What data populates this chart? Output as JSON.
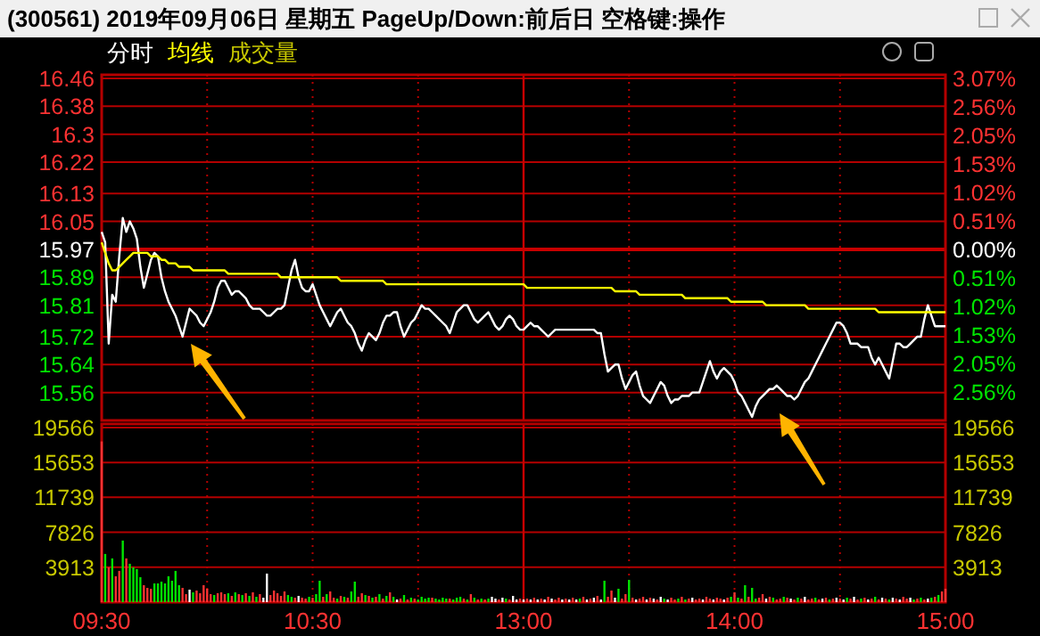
{
  "chart_data": [
    {
      "type": "line",
      "title": "(300561)  2019年09月06日 星期五 PageUp/Down:前后日 空格键:操作",
      "categories": [
        "09:30",
        null,
        null,
        null,
        null,
        null,
        null,
        null,
        null,
        null,
        null,
        null,
        null,
        null,
        null,
        null,
        null,
        null,
        null,
        null,
        null,
        null,
        null,
        null,
        null,
        null,
        null,
        null,
        null,
        null,
        null,
        null,
        null,
        null,
        null,
        null,
        null,
        null,
        null,
        null,
        null,
        null,
        null,
        null,
        null,
        null,
        null,
        null,
        null,
        null,
        null,
        null,
        null,
        null,
        null,
        null,
        null,
        null,
        null,
        null,
        "10:30",
        null,
        null,
        null,
        null,
        null,
        null,
        null,
        null,
        null,
        null,
        null,
        null,
        null,
        null,
        null,
        null,
        null,
        null,
        null,
        null,
        null,
        null,
        null,
        null,
        null,
        null,
        null,
        null,
        null,
        null,
        null,
        null,
        null,
        null,
        null,
        null,
        null,
        null,
        null,
        null,
        null,
        null,
        null,
        null,
        null,
        null,
        null,
        null,
        null,
        null,
        null,
        null,
        null,
        null,
        null,
        null,
        null,
        null,
        null,
        "13:00",
        null,
        null,
        null,
        null,
        null,
        null,
        null,
        null,
        null,
        null,
        null,
        null,
        null,
        null,
        null,
        null,
        null,
        null,
        null,
        null,
        null,
        null,
        null,
        null,
        null,
        null,
        null,
        null,
        null,
        null,
        null,
        null,
        null,
        null,
        null,
        null,
        null,
        null,
        null,
        null,
        null,
        null,
        null,
        null,
        null,
        null,
        null,
        null,
        null,
        null,
        null,
        null,
        null,
        null,
        null,
        null,
        null,
        null,
        null,
        "14:00",
        null,
        null,
        null,
        null,
        null,
        null,
        null,
        null,
        null,
        null,
        null,
        null,
        null,
        null,
        null,
        null,
        null,
        null,
        null,
        null,
        null,
        null,
        null,
        null,
        null,
        null,
        null,
        null,
        null,
        null,
        null,
        null,
        null,
        null,
        null,
        null,
        null,
        null,
        null,
        null,
        null,
        null,
        null,
        null,
        null,
        null,
        null,
        null,
        null,
        null,
        null,
        null,
        null,
        null,
        null,
        null,
        null,
        null,
        null,
        "15:00"
      ],
      "ylim": [
        15.48,
        16.47
      ],
      "yticks": [
        15.56,
        15.64,
        15.72,
        15.81,
        15.89,
        15.97,
        16.05,
        16.13,
        16.22,
        16.3,
        16.38,
        16.46
      ],
      "y2lim": [
        -3.07,
        3.13
      ],
      "y2ticks": [
        {
          "value": -2.56,
          "label": "2.56%"
        },
        {
          "value": -2.05,
          "label": "2.05%"
        },
        {
          "value": -1.53,
          "label": "1.53%"
        },
        {
          "value": -1.02,
          "label": "1.02%"
        },
        {
          "value": -0.51,
          "label": "0.51%"
        },
        {
          "value": 0,
          "label": "0.00%"
        },
        {
          "value": 0.51,
          "label": "0.51%"
        },
        {
          "value": 1.02,
          "label": "1.02%"
        },
        {
          "value": 1.53,
          "label": "1.53%"
        },
        {
          "value": 2.05,
          "label": "2.05%"
        },
        {
          "value": 2.56,
          "label": "2.56%"
        },
        {
          "value": 3.07,
          "label": "3.07%"
        }
      ],
      "tick_labels": "y",
      "grid": true,
      "legend": "top left",
      "ref_lines": [
        {
          "axis": "y",
          "value": 15.97,
          "color": "#c80000"
        },
        {
          "axis": "x",
          "value": "13:00",
          "color": "#c80000"
        }
      ],
      "series": [
        {
          "name": "分时",
          "color": "#ffffff",
          "values": [
            16.02,
            15.99,
            15.7,
            15.84,
            15.82,
            15.95,
            16.06,
            16.02,
            16.05,
            16.03,
            16.0,
            15.92,
            15.86,
            15.9,
            15.94,
            15.96,
            15.95,
            15.89,
            15.85,
            15.82,
            15.8,
            15.78,
            15.75,
            15.72,
            15.76,
            15.8,
            15.79,
            15.78,
            15.76,
            15.75,
            15.77,
            15.79,
            15.82,
            15.86,
            15.88,
            15.88,
            15.86,
            15.84,
            15.85,
            15.85,
            15.84,
            15.83,
            15.81,
            15.8,
            15.8,
            15.8,
            15.79,
            15.78,
            15.78,
            15.79,
            15.8,
            15.8,
            15.81,
            15.86,
            15.91,
            15.94,
            15.89,
            15.86,
            15.85,
            15.85,
            15.87,
            15.84,
            15.81,
            15.79,
            15.77,
            15.75,
            15.77,
            15.79,
            15.8,
            15.78,
            15.76,
            15.75,
            15.73,
            15.7,
            15.68,
            15.71,
            15.73,
            15.72,
            15.71,
            15.73,
            15.76,
            15.78,
            15.78,
            15.79,
            15.79,
            15.75,
            15.72,
            15.74,
            15.76,
            15.77,
            15.79,
            15.81,
            15.8,
            15.8,
            15.79,
            15.78,
            15.77,
            15.76,
            15.75,
            15.73,
            15.76,
            15.79,
            15.8,
            15.81,
            15.81,
            15.79,
            15.77,
            15.76,
            15.77,
            15.78,
            15.79,
            15.77,
            15.75,
            15.74,
            15.75,
            15.77,
            15.78,
            15.77,
            15.75,
            15.74,
            15.74,
            15.75,
            15.76,
            15.75,
            15.75,
            15.74,
            15.73,
            15.72,
            15.73,
            15.74,
            15.74,
            15.74,
            15.74,
            15.74,
            15.74,
            15.74,
            15.74,
            15.74,
            15.74,
            15.74,
            15.74,
            15.73,
            15.73,
            15.67,
            15.62,
            15.63,
            15.64,
            15.64,
            15.6,
            15.57,
            15.59,
            15.61,
            15.62,
            15.58,
            15.55,
            15.54,
            15.53,
            15.55,
            15.57,
            15.59,
            15.58,
            15.55,
            15.53,
            15.54,
            15.54,
            15.55,
            15.55,
            15.55,
            15.56,
            15.56,
            15.56,
            15.59,
            15.62,
            15.65,
            15.62,
            15.6,
            15.62,
            15.63,
            15.62,
            15.61,
            15.59,
            15.56,
            15.55,
            15.53,
            15.51,
            15.49,
            15.52,
            15.54,
            15.55,
            15.56,
            15.57,
            15.57,
            15.58,
            15.57,
            15.56,
            15.55,
            15.55,
            15.54,
            15.55,
            15.57,
            15.59,
            15.6,
            15.62,
            15.64,
            15.66,
            15.68,
            15.7,
            15.72,
            15.74,
            15.76,
            15.76,
            15.75,
            15.73,
            15.7,
            15.7,
            15.7,
            15.69,
            15.69,
            15.69,
            15.66,
            15.64,
            15.66,
            15.64,
            15.62,
            15.6,
            15.65,
            15.7,
            15.7,
            15.69,
            15.69,
            15.7,
            15.71,
            15.72,
            15.72,
            15.77,
            15.81,
            15.78,
            15.75,
            15.75,
            15.75,
            15.75
          ]
        },
        {
          "name": "均线",
          "color": "#ffff00",
          "values": [
            15.99,
            15.96,
            15.93,
            15.91,
            15.91,
            15.92,
            15.93,
            15.94,
            15.95,
            15.96,
            15.96,
            15.96,
            15.96,
            15.96,
            15.95,
            15.95,
            15.95,
            15.94,
            15.94,
            15.93,
            15.93,
            15.93,
            15.92,
            15.92,
            15.92,
            15.92,
            15.91,
            15.91,
            15.91,
            15.91,
            15.91,
            15.91,
            15.91,
            15.91,
            15.91,
            15.91,
            15.9,
            15.9,
            15.9,
            15.9,
            15.9,
            15.9,
            15.9,
            15.9,
            15.9,
            15.9,
            15.9,
            15.9,
            15.9,
            15.9,
            15.9,
            15.89,
            15.89,
            15.89,
            15.89,
            15.89,
            15.89,
            15.89,
            15.89,
            15.89,
            15.89,
            15.89,
            15.89,
            15.89,
            15.89,
            15.89,
            15.89,
            15.89,
            15.88,
            15.88,
            15.88,
            15.88,
            15.88,
            15.88,
            15.88,
            15.88,
            15.88,
            15.88,
            15.88,
            15.88,
            15.88,
            15.87,
            15.87,
            15.87,
            15.87,
            15.87,
            15.87,
            15.87,
            15.87,
            15.87,
            15.87,
            15.87,
            15.87,
            15.87,
            15.87,
            15.87,
            15.87,
            15.87,
            15.87,
            15.87,
            15.87,
            15.87,
            15.87,
            15.87,
            15.87,
            15.87,
            15.87,
            15.87,
            15.87,
            15.87,
            15.87,
            15.87,
            15.87,
            15.87,
            15.87,
            15.87,
            15.87,
            15.87,
            15.87,
            15.87,
            15.87,
            15.86,
            15.86,
            15.86,
            15.86,
            15.86,
            15.86,
            15.86,
            15.86,
            15.86,
            15.86,
            15.86,
            15.86,
            15.86,
            15.86,
            15.86,
            15.86,
            15.86,
            15.86,
            15.86,
            15.86,
            15.86,
            15.86,
            15.86,
            15.86,
            15.86,
            15.85,
            15.85,
            15.85,
            15.85,
            15.85,
            15.85,
            15.85,
            15.84,
            15.84,
            15.84,
            15.84,
            15.84,
            15.84,
            15.84,
            15.84,
            15.84,
            15.84,
            15.84,
            15.84,
            15.84,
            15.83,
            15.83,
            15.83,
            15.83,
            15.83,
            15.83,
            15.83,
            15.83,
            15.83,
            15.83,
            15.83,
            15.83,
            15.83,
            15.82,
            15.82,
            15.82,
            15.82,
            15.82,
            15.82,
            15.82,
            15.82,
            15.82,
            15.82,
            15.81,
            15.81,
            15.81,
            15.81,
            15.81,
            15.81,
            15.81,
            15.81,
            15.81,
            15.81,
            15.81,
            15.81,
            15.8,
            15.8,
            15.8,
            15.8,
            15.8,
            15.8,
            15.8,
            15.8,
            15.8,
            15.8,
            15.8,
            15.8,
            15.8,
            15.8,
            15.8,
            15.8,
            15.8,
            15.8,
            15.8,
            15.8,
            15.79,
            15.79,
            15.79,
            15.79,
            15.79,
            15.79,
            15.79,
            15.79,
            15.79,
            15.79,
            15.79,
            15.79,
            15.79,
            15.79,
            15.79,
            15.79,
            15.79,
            15.79,
            15.79,
            15.79
          ]
        }
      ]
    },
    {
      "type": "bar",
      "categories": [
        "09:30",
        null,
        null,
        null,
        null,
        null,
        null,
        null,
        null,
        null,
        null,
        null,
        null,
        null,
        null,
        null,
        null,
        null,
        null,
        null,
        null,
        null,
        null,
        null,
        null,
        null,
        null,
        null,
        null,
        null,
        null,
        null,
        null,
        null,
        null,
        null,
        null,
        null,
        null,
        null,
        null,
        null,
        null,
        null,
        null,
        null,
        null,
        null,
        null,
        null,
        null,
        null,
        null,
        null,
        null,
        null,
        null,
        null,
        null,
        null,
        "10:30",
        null,
        null,
        null,
        null,
        null,
        null,
        null,
        null,
        null,
        null,
        null,
        null,
        null,
        null,
        null,
        null,
        null,
        null,
        null,
        null,
        null,
        null,
        null,
        null,
        null,
        null,
        null,
        null,
        null,
        null,
        null,
        null,
        null,
        null,
        null,
        null,
        null,
        null,
        null,
        null,
        null,
        null,
        null,
        null,
        null,
        null,
        null,
        null,
        null,
        null,
        null,
        null,
        null,
        null,
        null,
        null,
        null,
        null,
        null,
        "13:00",
        null,
        null,
        null,
        null,
        null,
        null,
        null,
        null,
        null,
        null,
        null,
        null,
        null,
        null,
        null,
        null,
        null,
        null,
        null,
        null,
        null,
        null,
        null,
        null,
        null,
        null,
        null,
        null,
        null,
        null,
        null,
        null,
        null,
        null,
        null,
        null,
        null,
        null,
        null,
        null,
        null,
        null,
        null,
        null,
        null,
        null,
        null,
        null,
        null,
        null,
        null,
        null,
        null,
        null,
        null,
        null,
        null,
        null,
        null,
        "14:00",
        null,
        null,
        null,
        null,
        null,
        null,
        null,
        null,
        null,
        null,
        null,
        null,
        null,
        null,
        null,
        null,
        null,
        null,
        null,
        null,
        null,
        null,
        null,
        null,
        null,
        null,
        null,
        null,
        null,
        null,
        null,
        null,
        null,
        null,
        null,
        null,
        null,
        null,
        null,
        null,
        null,
        null,
        null,
        null,
        null,
        null,
        null,
        null,
        null,
        null,
        null,
        null,
        null,
        null,
        null,
        null,
        null,
        null,
        null,
        "15:00"
      ],
      "ylim": [
        0,
        19960
      ],
      "yticks": [
        3913,
        7826,
        11739,
        15653,
        19566
      ],
      "y2lim": [
        0,
        19960
      ],
      "y2ticks": [
        3913,
        7826,
        11739,
        15653,
        19566
      ],
      "grid": true,
      "ref_lines": [
        {
          "axis": "x",
          "value": "13:00",
          "color": "#c80000"
        }
      ],
      "series": [
        {
          "name": "成交量",
          "color": "#c8c800",
          "values": [
            18000,
            5400,
            3900,
            4900,
            2900,
            3500,
            6900,
            4900,
            4300,
            3900,
            3700,
            2800,
            1900,
            1600,
            1500,
            2100,
            2100,
            2300,
            2100,
            2900,
            2400,
            3500,
            1900,
            1600,
            900,
            1400,
            1100,
            1300,
            1000,
            1900,
            1500,
            900,
            800,
            1000,
            1100,
            900,
            1000,
            700,
            1100,
            900,
            800,
            1000,
            700,
            1100,
            600,
            900,
            500,
            3200,
            800,
            1300,
            1000,
            700,
            1200,
            800,
            600,
            500,
            700,
            500,
            400,
            600,
            500,
            900,
            2400,
            600,
            900,
            1200,
            500,
            400,
            700,
            600,
            500,
            1200,
            2300,
            600,
            1000,
            800,
            700,
            500,
            600,
            900,
            400,
            700,
            1100,
            600,
            300,
            400,
            800,
            300,
            500,
            400,
            300,
            600,
            400,
            500,
            500,
            400,
            300,
            500,
            400,
            400,
            300,
            500,
            600,
            400,
            300,
            900,
            500,
            300,
            400,
            300,
            400,
            600,
            400,
            300,
            500,
            400,
            300,
            700,
            300,
            400,
            300,
            400,
            300,
            500,
            300,
            400,
            300,
            600,
            400,
            300,
            500,
            300,
            400,
            300,
            500,
            300,
            400,
            600,
            300,
            400,
            500,
            700,
            300,
            2400,
            600,
            1300,
            500,
            1500,
            400,
            900,
            2500,
            500,
            300,
            400,
            600,
            300,
            500,
            400,
            300,
            600,
            400,
            300,
            500,
            300,
            400,
            600,
            300,
            400,
            500,
            300,
            400,
            300,
            600,
            400,
            300,
            500,
            400,
            300,
            500,
            600,
            1100,
            500,
            400,
            1900,
            600,
            1600,
            400,
            500,
            900,
            400,
            600,
            500,
            300,
            400,
            600,
            500,
            400,
            300,
            500,
            400,
            600,
            300,
            400,
            500,
            300,
            400,
            500,
            300,
            400,
            500,
            400,
            300,
            500,
            400,
            600,
            300,
            400,
            500,
            300,
            400,
            600,
            300,
            500,
            400,
            300,
            500,
            400,
            300,
            600,
            400,
            500,
            300,
            400,
            500,
            300,
            400,
            500,
            600,
            800,
            1200,
            1500
          ],
          "colors": [
            "#ff3232",
            "#00e600",
            "#ff3232",
            "#00e600",
            "#ff3232",
            "#ff3232",
            "#00e600",
            "#ff3232",
            "#00e600",
            "#00e600",
            "#00e600",
            "#00e600",
            "#ff3232",
            "#ff3232",
            "#ff3232",
            "#00e600",
            "#00e600",
            "#00e600",
            "#00e600",
            "#00e600",
            "#00e600",
            "#00e600",
            "#00e600",
            "#ff3232",
            "#ff3232",
            "#ffffff",
            "#00e600",
            "#ff3232",
            "#ff3232",
            "#ff3232",
            "#ff3232",
            "#ff3232",
            "#00e600",
            "#ff3232",
            "#ff3232",
            "#ff3232",
            "#00e600",
            "#ff3232",
            "#00e600",
            "#ff3232",
            "#00e600",
            "#ff3232",
            "#00e600",
            "#ff3232",
            "#00e600",
            "#ff3232",
            "#ffffff",
            "#ffffff",
            "#ff3232",
            "#ff3232",
            "#ff3232",
            "#ff3232",
            "#ff3232",
            "#00e600",
            "#00e600",
            "#ff3232",
            "#ffffff",
            "#ff3232",
            "#ff3232",
            "#00e600",
            "#ff3232",
            "#00e600",
            "#00e600",
            "#ff3232",
            "#00e600",
            "#ff3232",
            "#ff3232",
            "#00e600",
            "#ff3232",
            "#00e600",
            "#ff3232",
            "#00e600",
            "#00e600",
            "#ff3232",
            "#ff3232",
            "#00e600",
            "#ff3232",
            "#00e600",
            "#ff3232",
            "#00e600",
            "#ff3232",
            "#00e600",
            "#ff3232",
            "#00e600",
            "#ffffff",
            "#ff3232",
            "#00e600",
            "#ff3232",
            "#00e600",
            "#ff3232",
            "#00e600",
            "#00e600",
            "#00e600",
            "#00e600",
            "#ff3232",
            "#00e600",
            "#00e600",
            "#00e600",
            "#00e600",
            "#ff3232",
            "#00e600",
            "#00e600",
            "#00e600",
            "#ff3232",
            "#00e600",
            "#ff3232",
            "#00e600",
            "#ff3232",
            "#00e600",
            "#ff3232",
            "#00e600",
            "#ffffff",
            "#ffffff",
            "#ff3232",
            "#ffffff",
            "#00e600",
            "#ff3232",
            "#ffffff",
            "#ffffff",
            "#ff3232",
            "#ffffff",
            "#ff3232",
            "#ffffff",
            "#ff3232",
            "#ffffff",
            "#ff3232",
            "#ffffff",
            "#ff3232",
            "#ffffff",
            "#ff3232",
            "#ff3232",
            "#ffffff",
            "#ff3232",
            "#ffffff",
            "#ff3232",
            "#ffffff",
            "#00e600",
            "#ff3232",
            "#ffffff",
            "#ff3232",
            "#ffffff",
            "#ff3232",
            "#ffffff",
            "#00e600",
            "#ff3232",
            "#ff3232",
            "#ffffff",
            "#00e600",
            "#ff3232",
            "#ff3232",
            "#00e600",
            "#ff3232",
            "#ffffff",
            "#ff3232",
            "#ff3232",
            "#ffffff",
            "#ff3232",
            "#ffffff",
            "#ff3232",
            "#ffffff",
            "#00e600",
            "#ffffff",
            "#ff3232",
            "#ff3232",
            "#00e600",
            "#ff3232",
            "#00e600",
            "#ff3232",
            "#ffffff",
            "#ff3232",
            "#ff3232",
            "#ffffff",
            "#ff3232",
            "#ff3232",
            "#ffffff",
            "#ff3232",
            "#ff3232",
            "#ffffff",
            "#ff3232",
            "#00e600",
            "#ff3232",
            "#00e600",
            "#ff3232",
            "#00e600",
            "#ff3232",
            "#00e600",
            "#00e600",
            "#ff3232",
            "#ff3232",
            "#ffffff",
            "#ff3232",
            "#00e600",
            "#ff3232",
            "#ff3232",
            "#00e600",
            "#ff3232",
            "#ffffff",
            "#ff3232",
            "#00e600",
            "#ff3232",
            "#ffffff",
            "#ff3232",
            "#ff3232",
            "#00e600",
            "#ff3232",
            "#ffffff",
            "#ff3232",
            "#00e600",
            "#ff3232",
            "#ffffff",
            "#ff3232",
            "#ffffff",
            "#00e600",
            "#ff3232",
            "#ffffff",
            "#ff3232",
            "#00e600",
            "#ff3232",
            "#ffffff",
            "#ff3232",
            "#00e600",
            "#ff3232",
            "#ffffff",
            "#ff3232",
            "#00e600",
            "#ffffff",
            "#ff3232",
            "#ffffff",
            "#ff3232",
            "#ff3232",
            "#ffffff",
            "#00e600",
            "#ff3232",
            "#00e600",
            "#ff3232",
            "#ffffff",
            "#00e600",
            "#ff3232",
            "#00e600",
            "#ff3232",
            "#ff3232"
          ]
        }
      ]
    }
  ]
}
